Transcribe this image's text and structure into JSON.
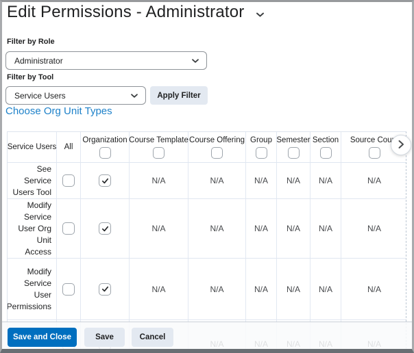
{
  "title": "Edit Permissions - Administrator",
  "filters": {
    "role_label": "Filter by Role",
    "role_value": "Administrator",
    "tool_label": "Filter by Tool",
    "tool_value": "Service Users",
    "apply_button_label": "Apply Filter"
  },
  "choose_org_link_label": "Choose Org Unit Types",
  "table": {
    "corner_header": "Service Users",
    "na_text": "N/A",
    "columns": [
      {
        "label": "All",
        "checkbox": false
      },
      {
        "label": "Organization",
        "checkbox": true
      },
      {
        "label": "Course Template",
        "checkbox": true
      },
      {
        "label": "Course Offering",
        "checkbox": true
      },
      {
        "label": "Group",
        "checkbox": true
      },
      {
        "label": "Semester",
        "checkbox": true
      },
      {
        "label": "Section",
        "checkbox": true
      },
      {
        "label": "Source Cours",
        "checkbox": true
      }
    ],
    "rows": [
      {
        "label": "See Service Users Tool",
        "cells": [
          "unchecked",
          "checked",
          "na",
          "na",
          "na",
          "na",
          "na",
          "na"
        ],
        "partial": false
      },
      {
        "label": "Modify Service User Org Unit Access",
        "cells": [
          "unchecked",
          "checked",
          "na",
          "na",
          "na",
          "na",
          "na",
          "na"
        ],
        "partial": false
      },
      {
        "label": "Modify Service User Permissions",
        "cells": [
          "unchecked",
          "checked",
          "na",
          "na",
          "na",
          "na",
          "na",
          "na"
        ],
        "partial": false
      },
      {
        "label": "",
        "cells": [
          "unchecked",
          "unchecked",
          "na",
          "na",
          "na",
          "na",
          "na",
          "na"
        ],
        "partial": true
      }
    ]
  },
  "footer": {
    "save_and_close_label": "Save and Close",
    "save_label": "Save",
    "cancel_label": "Cancel"
  },
  "colors": {
    "primary_blue": "#006fbf",
    "link_blue": "#1d81c9",
    "light_button_bg": "#e3e9f1",
    "table_border": "#dde4ee",
    "text": "#202122"
  }
}
